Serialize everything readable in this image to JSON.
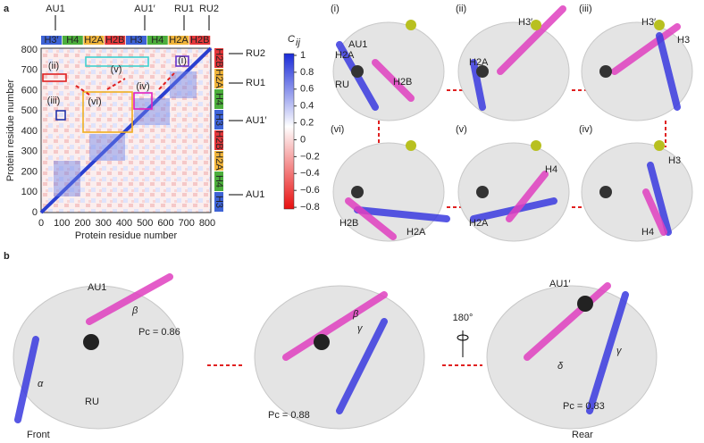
{
  "panel_a": {
    "label": "a",
    "heatmap": {
      "x_label": "Protein residue number",
      "y_label": "Protein residue number",
      "ticks": [
        "0",
        "100",
        "200",
        "300",
        "400",
        "500",
        "600",
        "700",
        "800"
      ],
      "top_markers": [
        "AU1",
        "AU1′",
        "RU1",
        "RU2"
      ],
      "right_markers": [
        "RU2",
        "RU1",
        "AU1′",
        "AU1"
      ],
      "top_domains": [
        "H3′",
        "H4",
        "H2A",
        "H2B",
        "H3",
        "H4",
        "H2A",
        "H2B"
      ],
      "right_domains": [
        "H2B",
        "H2A",
        "H4",
        "H3",
        "H2B",
        "H2A",
        "H4",
        "H3"
      ],
      "regions": [
        "(i)",
        "(ii)",
        "(iii)",
        "(iv)",
        "(v)",
        "(vi)"
      ]
    },
    "colorbar": {
      "title": "C",
      "subscript": "ij",
      "ticks": [
        "1",
        "0.8",
        "0.6",
        "0.4",
        "0.2",
        "0",
        "−0.2",
        "−0.4",
        "−0.6",
        "−0.8"
      ]
    },
    "structures": [
      {
        "label": "(i)",
        "texts": [
          "AU1",
          "H2A",
          "RU",
          "H2B"
        ]
      },
      {
        "label": "(ii)",
        "texts": [
          "H3′",
          "H2A"
        ]
      },
      {
        "label": "(iii)",
        "texts": [
          "H3′",
          "H3"
        ]
      },
      {
        "label": "(iv)",
        "texts": [
          "H3",
          "H4"
        ]
      },
      {
        "label": "(v)",
        "texts": [
          "H4",
          "H2A"
        ]
      },
      {
        "label": "(vi)",
        "texts": [
          "H2B",
          "H2A"
        ]
      }
    ]
  },
  "panel_b": {
    "label": "b",
    "rotation": "180°",
    "views": [
      {
        "texts": [
          "AU1",
          "β",
          "Pc = 0.86",
          "α",
          "RU"
        ],
        "caption": "Front"
      },
      {
        "texts": [
          "Pc = 0.88",
          "β",
          "γ"
        ]
      },
      {
        "texts": [
          "AU1′",
          "δ",
          "γ",
          "Pc = 0.83"
        ],
        "caption": "Rear"
      }
    ]
  }
}
